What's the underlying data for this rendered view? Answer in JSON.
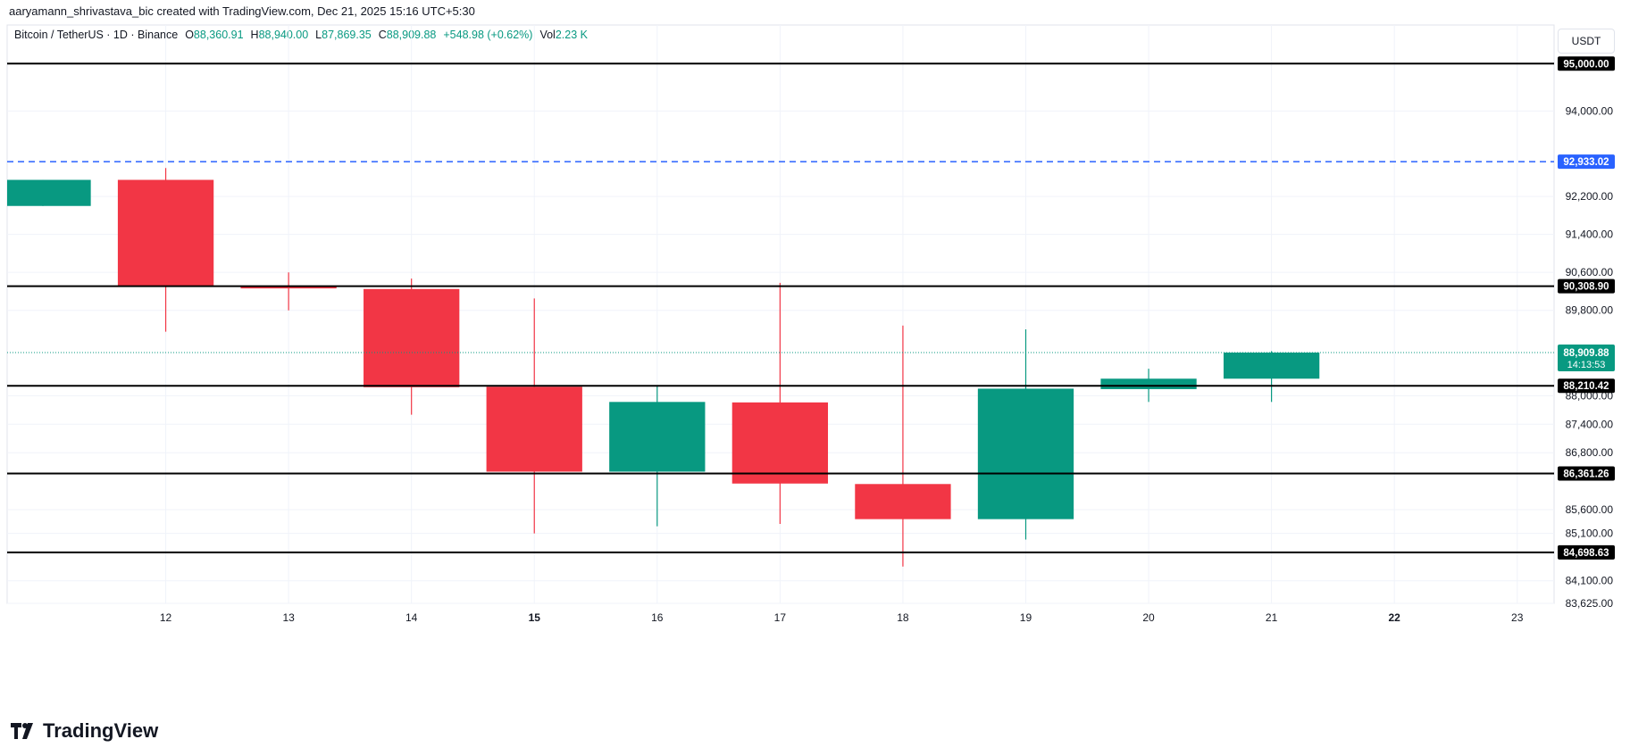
{
  "attribution": "aaryamann_shrivastava_bic created with TradingView.com, Dec 21, 2025 15:16 UTC+5:30",
  "symbol": {
    "name": "Bitcoin / TetherUS · 1D · Binance",
    "open_label": "O",
    "open": "88,360.91",
    "high_label": "H",
    "high": "88,940.00",
    "low_label": "L",
    "low": "87,869.35",
    "close_label": "C",
    "close": "88,909.88",
    "change": "+548.98 (+0.62%)",
    "vol_label": "Vol",
    "vol": "2.23 K"
  },
  "currency": "USDT",
  "brand": "TradingView",
  "colors": {
    "up": "#089981",
    "down": "#f23645",
    "level_line": "#000000",
    "dashed_line": "#2962ff",
    "grid": "#f0f3fa",
    "axis_text": "#131722"
  },
  "chart_data": {
    "type": "candlestick",
    "x": [
      "11",
      "12",
      "13",
      "14",
      "15",
      "16",
      "17",
      "18",
      "19",
      "20",
      "21"
    ],
    "candles": [
      {
        "day": 11,
        "open": 92000,
        "high": 92550,
        "low": 92000,
        "close": 92550
      },
      {
        "day": 12,
        "open": 92550,
        "high": 92800,
        "low": 89350,
        "close": 90300
      },
      {
        "day": 13,
        "open": 90300,
        "high": 90600,
        "low": 89800,
        "close": 90270
      },
      {
        "day": 14,
        "open": 90250,
        "high": 90470,
        "low": 87600,
        "close": 88180
      },
      {
        "day": 15,
        "open": 88190,
        "high": 90050,
        "low": 85100,
        "close": 86400
      },
      {
        "day": 16,
        "open": 86400,
        "high": 88200,
        "low": 85250,
        "close": 87870
      },
      {
        "day": 17,
        "open": 87860,
        "high": 90380,
        "low": 85300,
        "close": 86150
      },
      {
        "day": 18,
        "open": 86140,
        "high": 89480,
        "low": 84400,
        "close": 85400
      },
      {
        "day": 19,
        "open": 85400,
        "high": 89400,
        "low": 84970,
        "close": 88150
      },
      {
        "day": 20,
        "open": 88140,
        "high": 88570,
        "low": 87870,
        "close": 88360
      },
      {
        "day": 21,
        "open": 88360,
        "high": 88940,
        "low": 87870,
        "close": 88910
      }
    ],
    "x_tick_labels": [
      "12",
      "13",
      "14",
      "15",
      "16",
      "17",
      "18",
      "19",
      "20",
      "21",
      "22",
      "23"
    ],
    "x_tick_days": [
      12,
      13,
      14,
      15,
      16,
      17,
      18,
      19,
      20,
      21,
      22,
      23
    ],
    "x_tick_bold": [
      "15",
      "22"
    ],
    "y_tick_labels": [
      "94,000.00",
      "92,200.00",
      "91,400.00",
      "90,600.00",
      "89,800.00",
      "88,000.00",
      "87,400.00",
      "86,800.00",
      "85,600.00",
      "85,100.00",
      "84,100.00",
      "83,625.00"
    ],
    "y_tick_values": [
      94000,
      92200,
      91400,
      90600,
      89800,
      88000,
      87400,
      86800,
      85600,
      85100,
      84100,
      83625
    ],
    "horizontal_levels": [
      95000,
      90308.9,
      88210.42,
      86361.26,
      84698.63
    ],
    "horizontal_level_labels": [
      "95,000.00",
      "90,308.90",
      "88,210.42",
      "86,361.26",
      "84,698.63"
    ],
    "dashed_level": 92933.02,
    "dashed_level_label": "92,933.02",
    "last_price": 88909.88,
    "last_price_label": "88,909.88",
    "countdown": "14:13:53",
    "ylim": [
      83625,
      95400
    ],
    "xlim": [
      11,
      23.3
    ],
    "grid": true
  }
}
